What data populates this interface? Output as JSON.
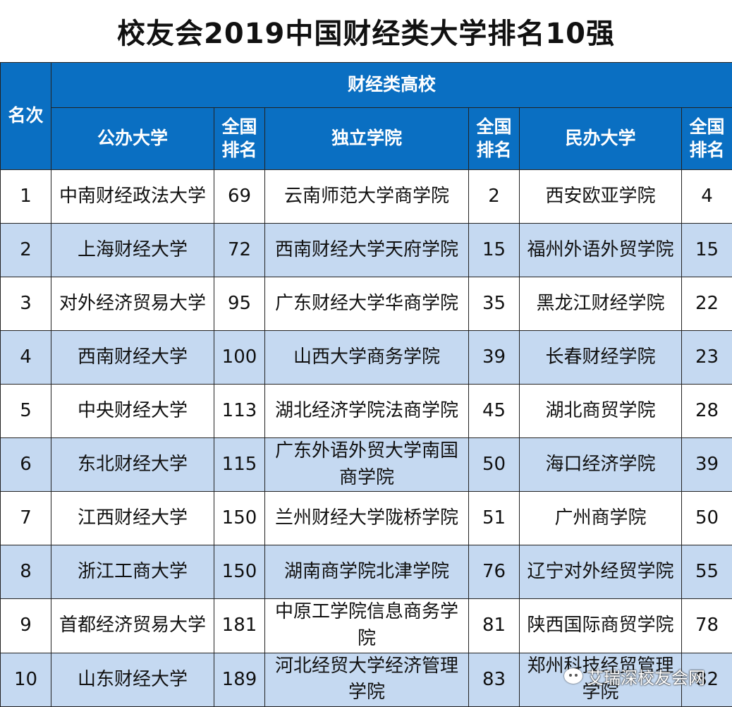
{
  "title": "校友会2019中国财经类大学排名10强",
  "headers": {
    "rank": "名次",
    "group": "财经类高校",
    "public": "公办大学",
    "national_rank": "全国排名",
    "independent": "独立学院",
    "private": "民办大学"
  },
  "rows": [
    {
      "rank": "1",
      "public": "中南财经政法大学",
      "public_rank": "69",
      "independent": "云南师范大学商学院",
      "independent_rank": "2",
      "private": "西安欧亚学院",
      "private_rank": "4"
    },
    {
      "rank": "2",
      "public": "上海财经大学",
      "public_rank": "72",
      "independent": "西南财经大学天府学院",
      "independent_rank": "15",
      "private": "福州外语外贸学院",
      "private_rank": "15"
    },
    {
      "rank": "3",
      "public": "对外经济贸易大学",
      "public_rank": "95",
      "independent": "广东财经大学华商学院",
      "independent_rank": "35",
      "private": "黑龙江财经学院",
      "private_rank": "22"
    },
    {
      "rank": "4",
      "public": "西南财经大学",
      "public_rank": "100",
      "independent": "山西大学商务学院",
      "independent_rank": "39",
      "private": "长春财经学院",
      "private_rank": "23"
    },
    {
      "rank": "5",
      "public": "中央财经大学",
      "public_rank": "113",
      "independent": "湖北经济学院法商学院",
      "independent_rank": "45",
      "private": "湖北商贸学院",
      "private_rank": "28"
    },
    {
      "rank": "6",
      "public": "东北财经大学",
      "public_rank": "115",
      "independent": "广东外语外贸大学南国商学院",
      "independent_rank": "50",
      "private": "海口经济学院",
      "private_rank": "39"
    },
    {
      "rank": "7",
      "public": "江西财经大学",
      "public_rank": "150",
      "independent": "兰州财经大学陇桥学院",
      "independent_rank": "51",
      "private": "广州商学院",
      "private_rank": "50"
    },
    {
      "rank": "8",
      "public": "浙江工商大学",
      "public_rank": "150",
      "independent": "湖南商学院北津学院",
      "independent_rank": "76",
      "private": "辽宁对外经贸学院",
      "private_rank": "55"
    },
    {
      "rank": "9",
      "public": "首都经济贸易大学",
      "public_rank": "181",
      "independent": "中原工学院信息商务学院",
      "independent_rank": "81",
      "private": "陕西国际商贸学院",
      "private_rank": "78"
    },
    {
      "rank": "10",
      "public": "山东财经大学",
      "public_rank": "189",
      "independent": "河北经贸大学经济管理学院",
      "independent_rank": "83",
      "private": "郑州科技经贸管理学院",
      "private_rank": "82"
    }
  ],
  "watermark": "艾瑞深校友会网",
  "colors": {
    "header_bg": "#0a6fc2",
    "alt_row_bg": "#c5d9f1"
  }
}
